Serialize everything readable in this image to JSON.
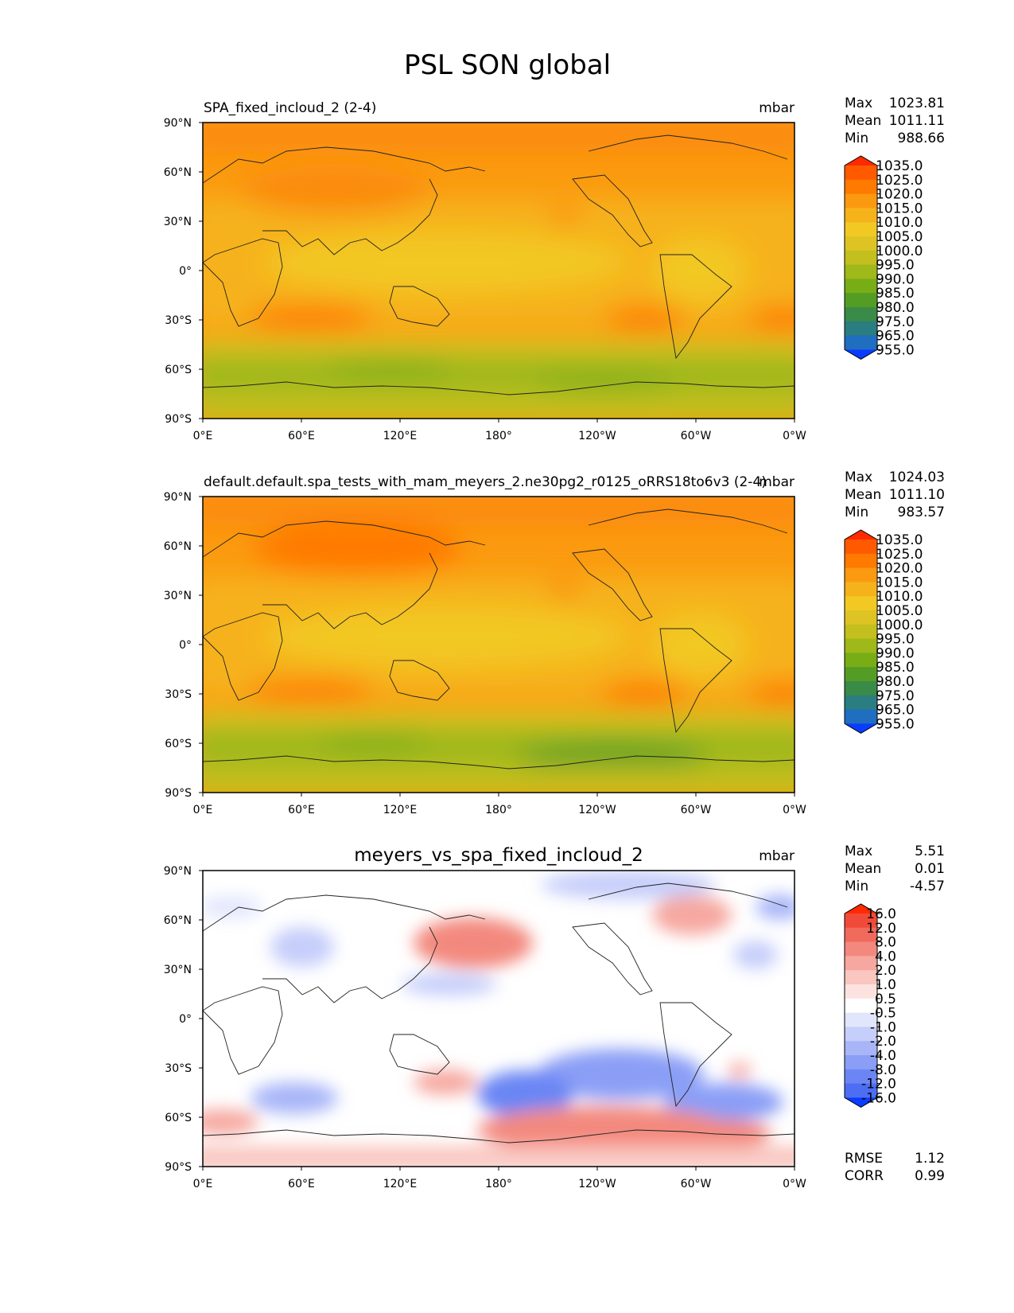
{
  "figure": {
    "title": "PSL SON global"
  },
  "x_ticks": [
    "0°E",
    "60°E",
    "120°E",
    "180°",
    "120°W",
    "60°W",
    "0°W"
  ],
  "y_ticks": [
    "90°N",
    "60°N",
    "30°N",
    "0°",
    "30°S",
    "60°S",
    "90°S"
  ],
  "chart_data": [
    {
      "type": "heatmap",
      "name": "test",
      "title": "SPA_fixed_incloud_2 (2-4)",
      "units": "mbar",
      "stats": {
        "max_label": "Max",
        "max": "1023.81",
        "mean_label": "Mean",
        "mean": "1011.11",
        "min_label": "Min",
        "min": "988.66"
      },
      "xlim": [
        0,
        360
      ],
      "ylim": [
        -90,
        90
      ],
      "colorbar": {
        "levels": [
          "1035.0",
          "1025.0",
          "1020.0",
          "1015.0",
          "1010.0",
          "1005.0",
          "1000.0",
          "995.0",
          "990.0",
          "985.0",
          "980.0",
          "975.0",
          "965.0",
          "955.0"
        ],
        "colors": [
          "#ff2a00",
          "#ff5a00",
          "#ff7a00",
          "#fb9a10",
          "#f6b21a",
          "#f2c823",
          "#ddc424",
          "#c2bf1e",
          "#9fb81a",
          "#78ad16",
          "#549d25",
          "#3a8a48",
          "#2a7d80",
          "#1f6ec0",
          "#0a3cff"
        ]
      }
    },
    {
      "type": "heatmap",
      "name": "reference",
      "title": "default.default.spa_tests_with_mam_meyers_2.ne30pg2_r0125_oRRS18to6v3 (2-4)",
      "units": "mbar",
      "stats": {
        "max_label": "Max",
        "max": "1024.03",
        "mean_label": "Mean",
        "mean": "1011.10",
        "min_label": "Min",
        "min": "983.57"
      },
      "xlim": [
        0,
        360
      ],
      "ylim": [
        -90,
        90
      ],
      "colorbar": {
        "levels": [
          "1035.0",
          "1025.0",
          "1020.0",
          "1015.0",
          "1010.0",
          "1005.0",
          "1000.0",
          "995.0",
          "990.0",
          "985.0",
          "980.0",
          "975.0",
          "965.0",
          "955.0"
        ],
        "colors": [
          "#ff2a00",
          "#ff5a00",
          "#ff7a00",
          "#fb9a10",
          "#f6b21a",
          "#f2c823",
          "#ddc424",
          "#c2bf1e",
          "#9fb81a",
          "#78ad16",
          "#549d25",
          "#3a8a48",
          "#2a7d80",
          "#1f6ec0",
          "#0a3cff"
        ]
      }
    },
    {
      "type": "heatmap",
      "name": "difference",
      "title": "meyers_vs_spa_fixed_incloud_2",
      "units": "mbar",
      "stats": {
        "max_label": "Max",
        "max": "5.51",
        "mean_label": "Mean",
        "mean": "0.01",
        "min_label": "Min",
        "min": "-4.57"
      },
      "extra_stats": {
        "rmse_label": "RMSE",
        "rmse": "1.12",
        "corr_label": "CORR",
        "corr": "0.99"
      },
      "xlim": [
        0,
        360
      ],
      "ylim": [
        -90,
        90
      ],
      "colorbar": {
        "levels": [
          "16.0",
          "12.0",
          "8.0",
          "4.0",
          "2.0",
          "1.0",
          "0.5",
          "-0.5",
          "-1.0",
          "-2.0",
          "-4.0",
          "-8.0",
          "-12.0",
          "-16.0"
        ],
        "colors": [
          "#ff2a00",
          "#f24a3a",
          "#f06a5c",
          "#f3897e",
          "#f6a8a0",
          "#f9c6c0",
          "#fde3e0",
          "#ffffff",
          "#e2e6fc",
          "#c6cefa",
          "#a8b6f8",
          "#8a9ef6",
          "#6b86f4",
          "#4d6ef2",
          "#0a3cff"
        ]
      }
    }
  ]
}
